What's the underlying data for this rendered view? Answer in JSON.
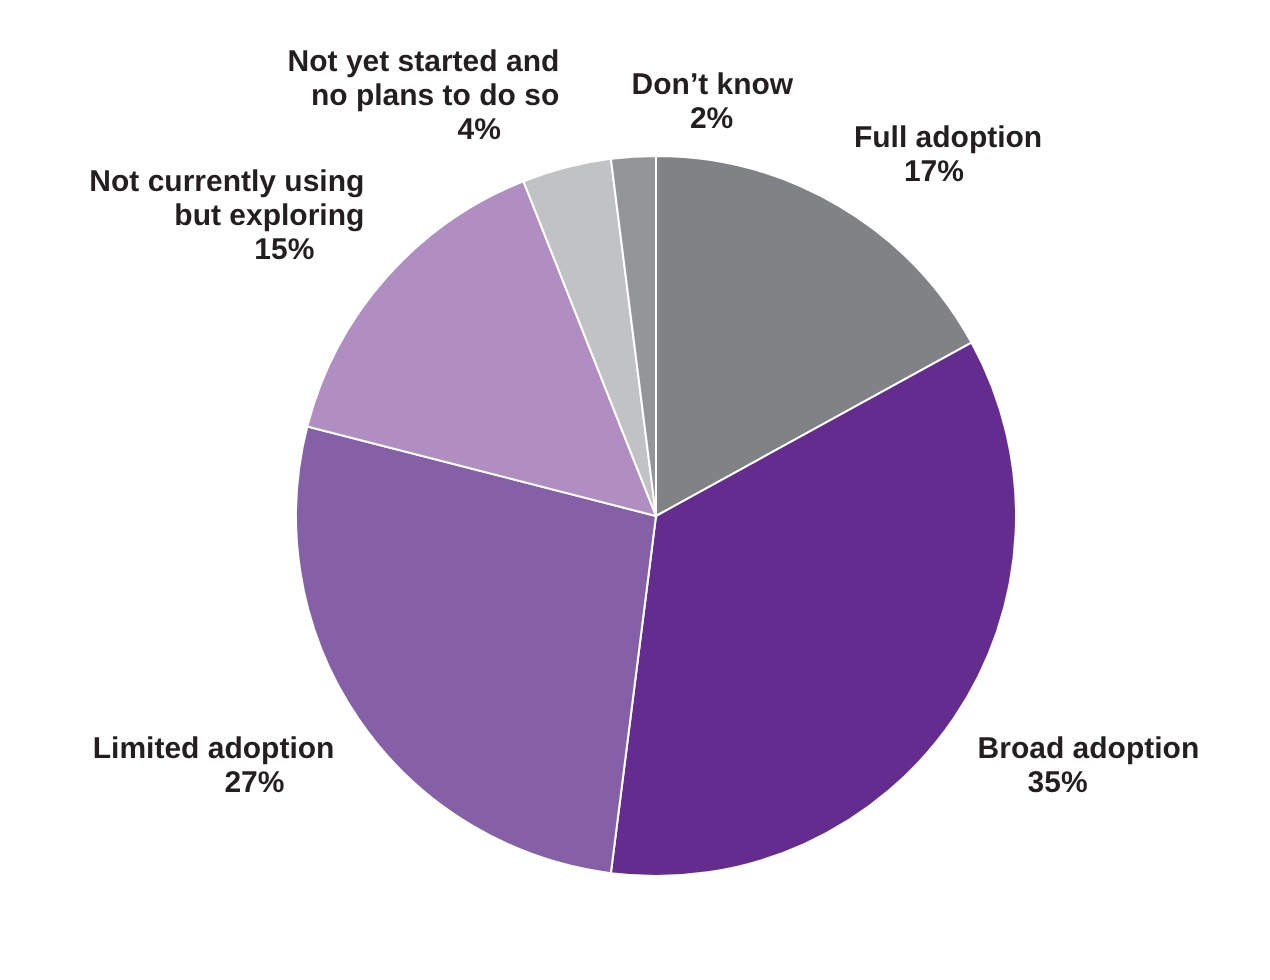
{
  "chart_data": {
    "type": "pie",
    "categories": [
      "Full adoption",
      "Broad adoption",
      "Limited adoption",
      "Not currently using but exploring",
      "Not yet started and no plans to do so",
      "Don’t know"
    ],
    "values": [
      17,
      35,
      27,
      15,
      4,
      2
    ],
    "value_labels": [
      "17%",
      "35%",
      "27%",
      "15%",
      "4%",
      "2%"
    ],
    "colors": [
      "#808285",
      "#652c90",
      "#8660a6",
      "#b08ec2",
      "#c1c2c4",
      "#939598"
    ]
  }
}
